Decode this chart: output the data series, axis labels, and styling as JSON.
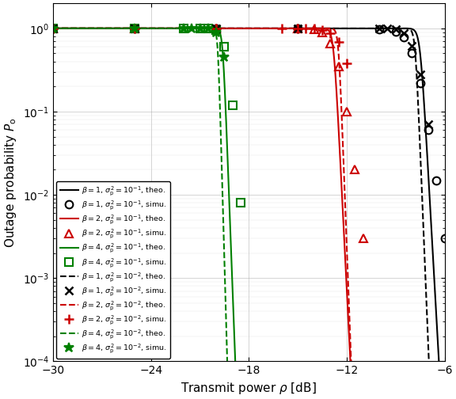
{
  "xlabel": "Transmit power $\\rho$ [dB]",
  "ylabel": "Outage probability $P_{\\mathrm{o}}$",
  "xlim": [
    -30,
    -6
  ],
  "ylim": [
    0.0001,
    2.0
  ],
  "xticks": [
    -30,
    -24,
    -18,
    -12,
    -6
  ],
  "curves": [
    {
      "color": "#000000",
      "ls": "-",
      "x50": -7.5,
      "k": 8.0,
      "label": "$\\beta = 1$, $\\sigma_{\\mathrm{p}}^{2} = 10^{-1}$, theo."
    },
    {
      "color": "#cc0000",
      "ls": "-",
      "x50": -12.8,
      "k": 9.0,
      "label": "$\\beta = 2$, $\\sigma_{\\mathrm{p}}^{2} = 10^{-1}$, theo."
    },
    {
      "color": "#008000",
      "ls": "-",
      "x50": -19.6,
      "k": 12.0,
      "label": "$\\beta = 4$, $\\sigma_{\\mathrm{p}}^{2} = 10^{-1}$, theo."
    },
    {
      "color": "#000000",
      "ls": "--",
      "x50": -7.8,
      "k": 11.0,
      "label": "$\\beta = 1$, $\\sigma_{\\mathrm{p}}^{2} = 10^{-2}$, theo."
    },
    {
      "color": "#cc0000",
      "ls": "--",
      "x50": -12.5,
      "k": 12.0,
      "label": "$\\beta = 2$, $\\sigma_{\\mathrm{p}}^{2} = 10^{-2}$, theo."
    },
    {
      "color": "#008000",
      "ls": "--",
      "x50": -19.9,
      "k": 16.0,
      "label": "$\\beta = 4$, $\\sigma_{\\mathrm{p}}^{2} = 10^{-2}$, theo."
    }
  ],
  "simu": [
    {
      "color": "#000000",
      "marker": "o",
      "mfc": "none",
      "ms": 7,
      "mew": 1.5,
      "label": "$\\beta = 1$, $\\sigma_{\\mathrm{p}}^{2} = 10^{-1}$, simu.",
      "x": [
        -30,
        -25,
        -20,
        -15,
        -10,
        -9,
        -8.5,
        -8,
        -7.5,
        -7,
        -6.5,
        -6
      ],
      "y": [
        1.0,
        1.0,
        1.0,
        1.0,
        0.985,
        0.92,
        0.78,
        0.5,
        0.22,
        0.06,
        0.015,
        0.003
      ]
    },
    {
      "color": "#cc0000",
      "marker": "^",
      "mfc": "none",
      "ms": 7,
      "mew": 1.5,
      "label": "$\\beta = 2$, $\\sigma_{\\mathrm{p}}^{2} = 10^{-1}$, simu.",
      "x": [
        -30,
        -25,
        -20,
        -15,
        -14,
        -13.5,
        -13,
        -12.5,
        -12,
        -11.5,
        -11
      ],
      "y": [
        1.0,
        1.0,
        1.0,
        1.0,
        0.98,
        0.9,
        0.65,
        0.35,
        0.1,
        0.02,
        0.003
      ]
    },
    {
      "color": "#008000",
      "marker": "s",
      "mfc": "none",
      "ms": 7,
      "mew": 1.5,
      "label": "$\\beta = 4$, $\\sigma_{\\mathrm{p}}^{2} = 10^{-1}$, simu.",
      "x": [
        -30,
        -25,
        -22,
        -21,
        -20.5,
        -20,
        -19.5,
        -19,
        -18.5
      ],
      "y": [
        1.0,
        1.0,
        1.0,
        1.0,
        0.998,
        0.95,
        0.6,
        0.12,
        0.008
      ]
    },
    {
      "color": "#000000",
      "marker": "x",
      "mfc": "#000000",
      "ms": 7,
      "mew": 1.8,
      "label": "$\\beta = 1$, $\\sigma_{\\mathrm{p}}^{2} = 10^{-2}$, simu.",
      "x": [
        -30,
        -25,
        -20,
        -15,
        -10,
        -9.5,
        -9,
        -8.5,
        -8,
        -7.5,
        -7
      ],
      "y": [
        1.0,
        1.0,
        1.0,
        1.0,
        0.999,
        0.995,
        0.97,
        0.88,
        0.62,
        0.28,
        0.07
      ]
    },
    {
      "color": "#cc0000",
      "marker": "+",
      "mfc": "#cc0000",
      "ms": 8,
      "mew": 1.8,
      "label": "$\\beta = 2$, $\\sigma_{\\mathrm{p}}^{2} = 10^{-2}$, simu.",
      "x": [
        -30,
        -25,
        -20,
        -16,
        -15,
        -14.5,
        -14,
        -13.5,
        -13,
        -12.5,
        -12
      ],
      "y": [
        1.0,
        1.0,
        1.0,
        1.0,
        0.9997,
        0.998,
        0.99,
        0.96,
        0.88,
        0.68,
        0.38
      ]
    },
    {
      "color": "#008000",
      "marker": "*",
      "mfc": "#008000",
      "ms": 9,
      "mew": 1.5,
      "label": "$\\beta = 4$, $\\sigma_{\\mathrm{p}}^{2} = 10^{-2}$, simu.",
      "x": [
        -30,
        -25,
        -22,
        -21.5,
        -21,
        -20.5,
        -20,
        -19.5
      ],
      "y": [
        1.0,
        1.0,
        1.0,
        0.9999,
        0.9994,
        0.99,
        0.9,
        0.45
      ]
    }
  ]
}
